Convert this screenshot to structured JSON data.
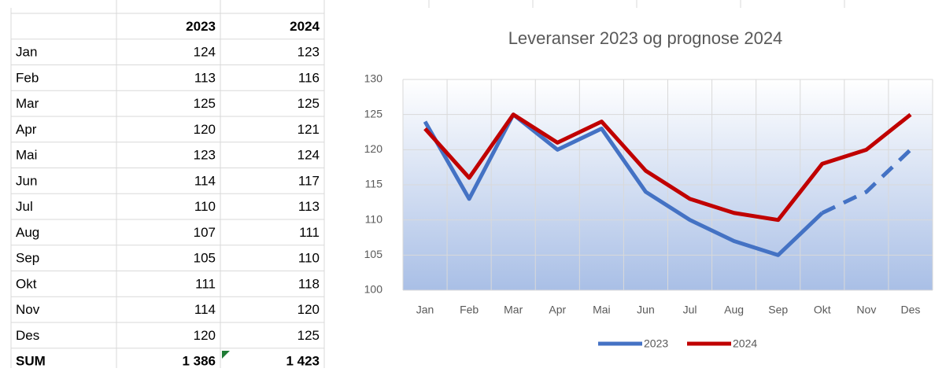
{
  "table": {
    "header": [
      "2023",
      "2024"
    ],
    "rows": [
      [
        "Jan",
        "124",
        "123"
      ],
      [
        "Feb",
        "113",
        "116"
      ],
      [
        "Mar",
        "125",
        "125"
      ],
      [
        "Apr",
        "120",
        "121"
      ],
      [
        "Mai",
        "123",
        "124"
      ],
      [
        "Jun",
        "114",
        "117"
      ],
      [
        "Jul",
        "110",
        "113"
      ],
      [
        "Aug",
        "107",
        "111"
      ],
      [
        "Sep",
        "105",
        "110"
      ],
      [
        "Okt",
        "111",
        "118"
      ],
      [
        "Nov",
        "114",
        "120"
      ],
      [
        "Des",
        "120",
        "125"
      ]
    ],
    "total": [
      "SUM",
      "1 386",
      "1 423"
    ]
  },
  "chart_data": {
    "type": "line",
    "title": "Leveranser 2023 og prognose 2024",
    "categories": [
      "Jan",
      "Feb",
      "Mar",
      "Apr",
      "Mai",
      "Jun",
      "Jul",
      "Aug",
      "Sep",
      "Okt",
      "Nov",
      "Des"
    ],
    "series": [
      {
        "name": "2023",
        "color": "#4472c4",
        "dash_from": 9,
        "values": [
          124,
          113,
          125,
          120,
          123,
          114,
          110,
          107,
          105,
          111,
          114,
          120
        ]
      },
      {
        "name": "2024",
        "color": "#c00000",
        "values": [
          123,
          116,
          125,
          121,
          124,
          117,
          113,
          111,
          110,
          118,
          120,
          125
        ]
      }
    ],
    "ylim": [
      100,
      130
    ],
    "yticks": [
      100,
      105,
      110,
      115,
      120,
      125,
      130
    ],
    "grid": true,
    "legend": "bottom"
  }
}
